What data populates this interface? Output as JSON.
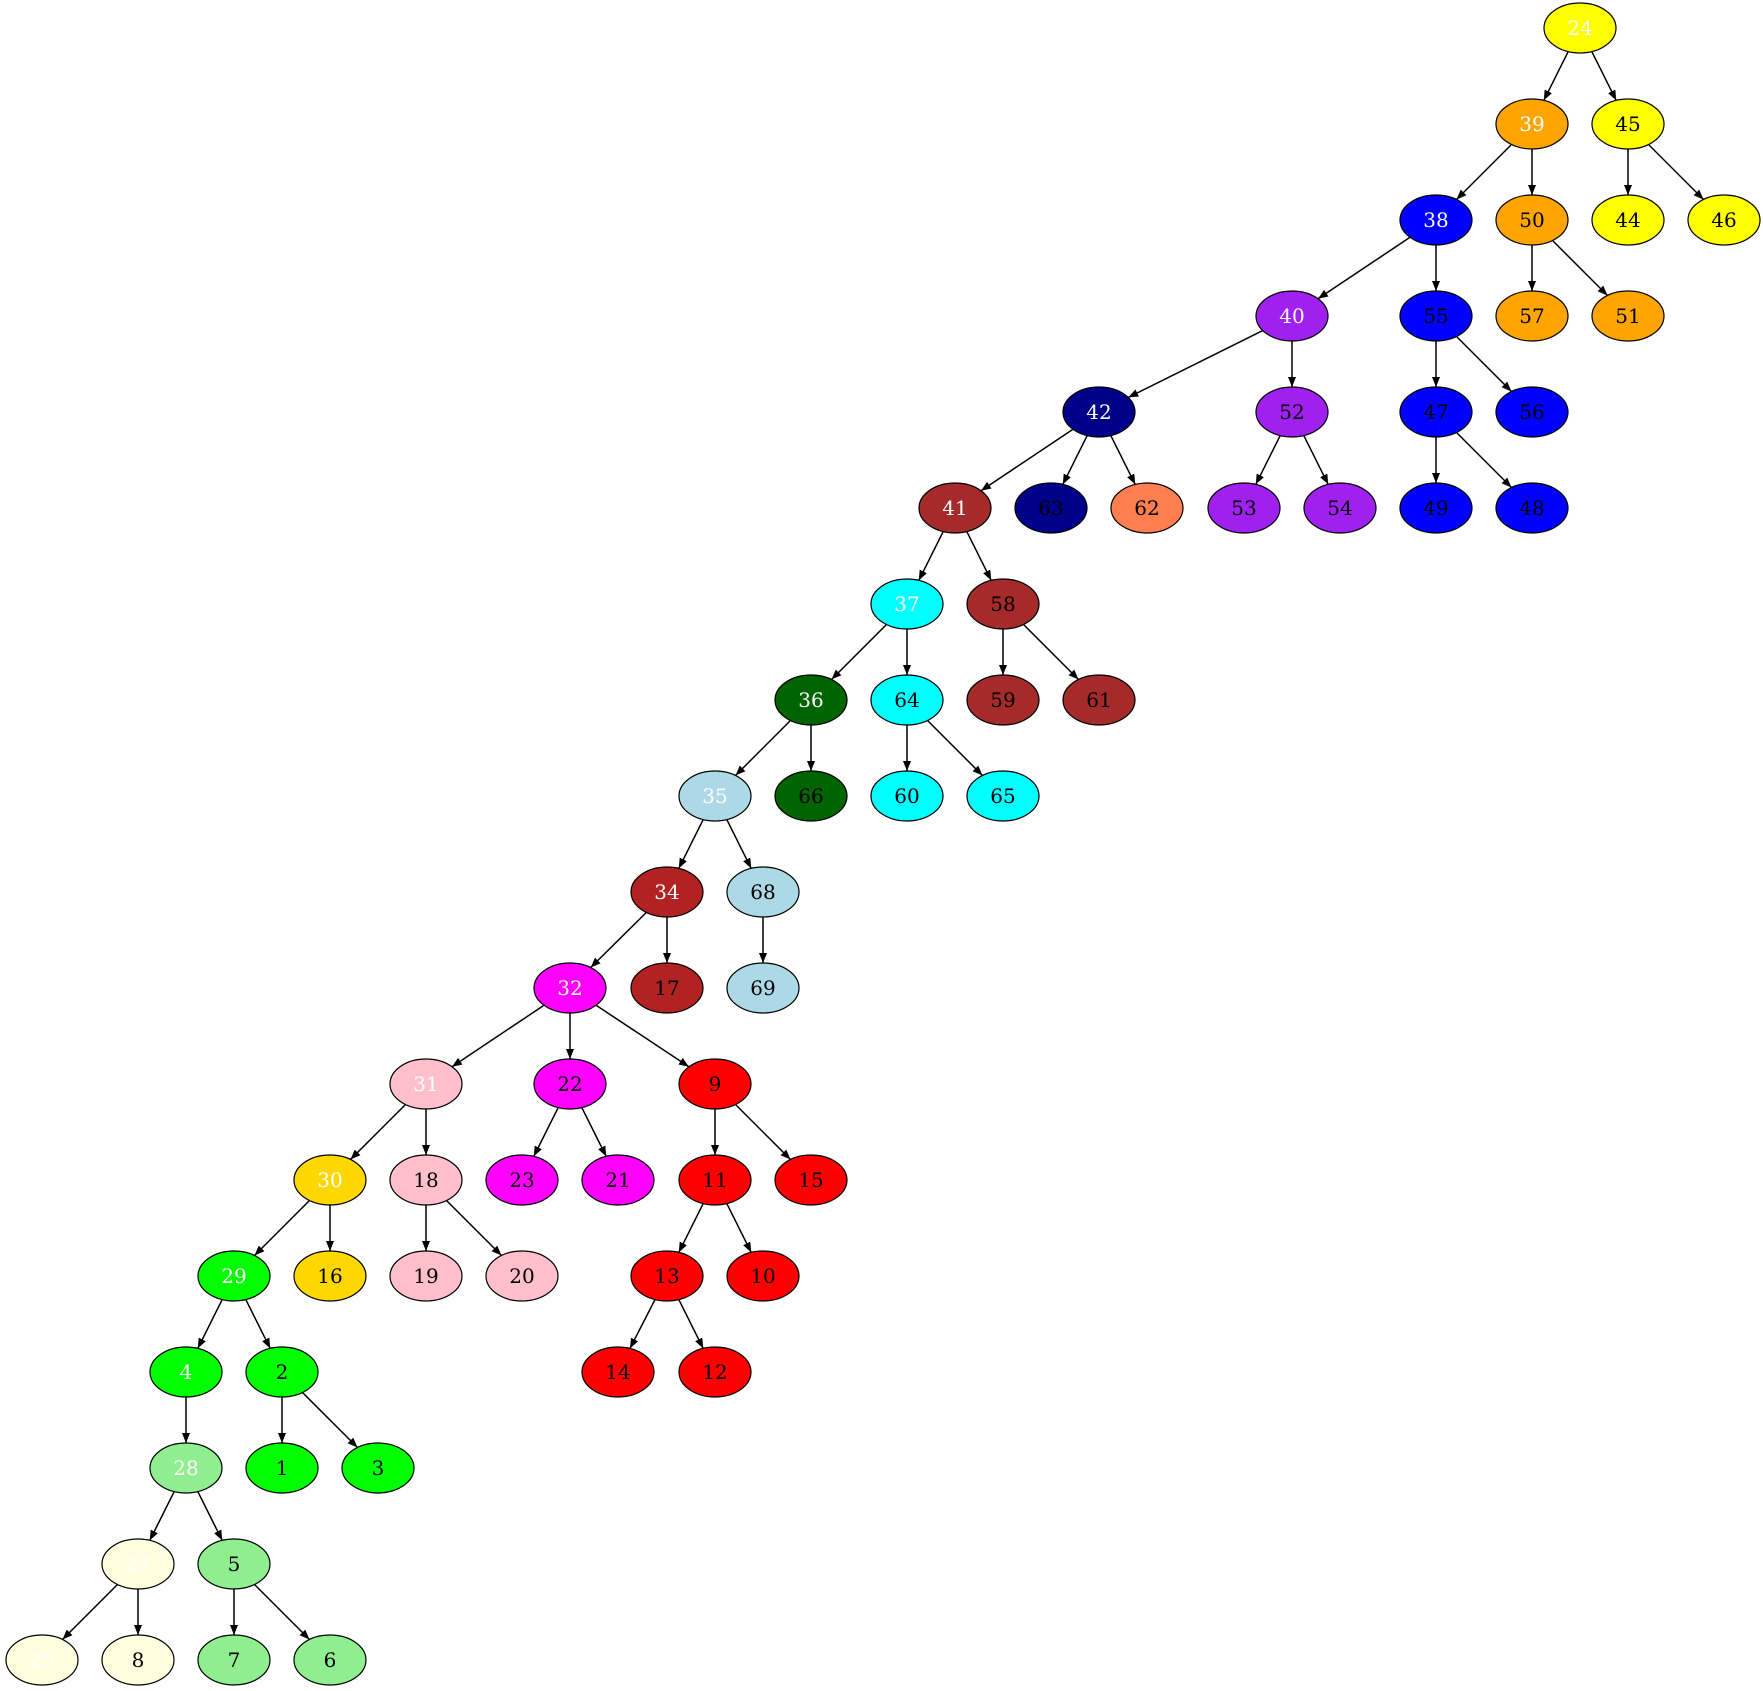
{
  "colors": {
    "yellow": "#ffff00",
    "orange": "#ffa500",
    "blue": "#0000ff",
    "purple": "#a020f0",
    "darkblue": "#00008b",
    "coral": "#ff7f50",
    "brown": "#a52a2a",
    "cyan": "#00ffff",
    "darkgreen": "#006400",
    "lightblue": "#add8e6",
    "firebrick": "#b22222",
    "magenta": "#ff00ff",
    "pink": "#ffc0cb",
    "red": "#ff0000",
    "gold": "#ffd700",
    "green": "#00ff00",
    "lightgreen": "#90ee90",
    "lightyellow": "#ffffe0"
  },
  "nodes": [
    {
      "id": "24",
      "label": "24",
      "color": "yellow",
      "text": "white"
    },
    {
      "id": "39",
      "label": "39",
      "color": "orange",
      "text": "white"
    },
    {
      "id": "45",
      "label": "45",
      "color": "yellow",
      "text": "black"
    },
    {
      "id": "38",
      "label": "38",
      "color": "blue",
      "text": "white"
    },
    {
      "id": "50",
      "label": "50",
      "color": "orange",
      "text": "black"
    },
    {
      "id": "44",
      "label": "44",
      "color": "yellow",
      "text": "black"
    },
    {
      "id": "46",
      "label": "46",
      "color": "yellow",
      "text": "black"
    },
    {
      "id": "40",
      "label": "40",
      "color": "purple",
      "text": "white"
    },
    {
      "id": "55",
      "label": "55",
      "color": "blue",
      "text": "black"
    },
    {
      "id": "57",
      "label": "57",
      "color": "orange",
      "text": "black"
    },
    {
      "id": "51",
      "label": "51",
      "color": "orange",
      "text": "black"
    },
    {
      "id": "42",
      "label": "42",
      "color": "darkblue",
      "text": "white"
    },
    {
      "id": "52",
      "label": "52",
      "color": "purple",
      "text": "black"
    },
    {
      "id": "47",
      "label": "47",
      "color": "blue",
      "text": "black"
    },
    {
      "id": "56",
      "label": "56",
      "color": "blue",
      "text": "black"
    },
    {
      "id": "41",
      "label": "41",
      "color": "brown",
      "text": "white"
    },
    {
      "id": "63",
      "label": "63",
      "color": "darkblue",
      "text": "black"
    },
    {
      "id": "62",
      "label": "62",
      "color": "coral",
      "text": "black"
    },
    {
      "id": "53",
      "label": "53",
      "color": "purple",
      "text": "black"
    },
    {
      "id": "54",
      "label": "54",
      "color": "purple",
      "text": "black"
    },
    {
      "id": "49",
      "label": "49",
      "color": "blue",
      "text": "black"
    },
    {
      "id": "48",
      "label": "48",
      "color": "blue",
      "text": "black"
    },
    {
      "id": "37",
      "label": "37",
      "color": "cyan",
      "text": "white"
    },
    {
      "id": "58",
      "label": "58",
      "color": "brown",
      "text": "black"
    },
    {
      "id": "36",
      "label": "36",
      "color": "darkgreen",
      "text": "white"
    },
    {
      "id": "64",
      "label": "64",
      "color": "cyan",
      "text": "black"
    },
    {
      "id": "59",
      "label": "59",
      "color": "brown",
      "text": "black"
    },
    {
      "id": "61",
      "label": "61",
      "color": "brown",
      "text": "black"
    },
    {
      "id": "35",
      "label": "35",
      "color": "lightblue",
      "text": "white"
    },
    {
      "id": "66",
      "label": "66",
      "color": "darkgreen",
      "text": "black"
    },
    {
      "id": "60",
      "label": "60",
      "color": "cyan",
      "text": "black"
    },
    {
      "id": "65",
      "label": "65",
      "color": "cyan",
      "text": "black"
    },
    {
      "id": "34",
      "label": "34",
      "color": "firebrick",
      "text": "white"
    },
    {
      "id": "68",
      "label": "68",
      "color": "lightblue",
      "text": "black"
    },
    {
      "id": "32",
      "label": "32",
      "color": "magenta",
      "text": "white"
    },
    {
      "id": "17",
      "label": "17",
      "color": "firebrick",
      "text": "black"
    },
    {
      "id": "69",
      "label": "69",
      "color": "lightblue",
      "text": "black"
    },
    {
      "id": "31",
      "label": "31",
      "color": "pink",
      "text": "white"
    },
    {
      "id": "22",
      "label": "22",
      "color": "magenta",
      "text": "black"
    },
    {
      "id": "9",
      "label": "9",
      "color": "red",
      "text": "black"
    },
    {
      "id": "30",
      "label": "30",
      "color": "gold",
      "text": "white"
    },
    {
      "id": "18",
      "label": "18",
      "color": "pink",
      "text": "black"
    },
    {
      "id": "23",
      "label": "23",
      "color": "magenta",
      "text": "black"
    },
    {
      "id": "21",
      "label": "21",
      "color": "magenta",
      "text": "black"
    },
    {
      "id": "11",
      "label": "11",
      "color": "red",
      "text": "black"
    },
    {
      "id": "15",
      "label": "15",
      "color": "red",
      "text": "black"
    },
    {
      "id": "29",
      "label": "29",
      "color": "green",
      "text": "white"
    },
    {
      "id": "16",
      "label": "16",
      "color": "gold",
      "text": "black"
    },
    {
      "id": "19",
      "label": "19",
      "color": "pink",
      "text": "black"
    },
    {
      "id": "20",
      "label": "20",
      "color": "pink",
      "text": "black"
    },
    {
      "id": "13",
      "label": "13",
      "color": "red",
      "text": "black"
    },
    {
      "id": "10",
      "label": "10",
      "color": "red",
      "text": "black"
    },
    {
      "id": "4",
      "label": "4",
      "color": "green",
      "text": "white"
    },
    {
      "id": "2",
      "label": "2",
      "color": "green",
      "text": "black"
    },
    {
      "id": "14",
      "label": "14",
      "color": "red",
      "text": "black"
    },
    {
      "id": "12",
      "label": "12",
      "color": "red",
      "text": "black"
    },
    {
      "id": "28",
      "label": "28",
      "color": "lightgreen",
      "text": "white"
    },
    {
      "id": "1",
      "label": "1",
      "color": "green",
      "text": "black"
    },
    {
      "id": "3",
      "label": "3",
      "color": "green",
      "text": "black"
    },
    {
      "id": "27",
      "label": "27",
      "color": "lightyellow",
      "text": "white"
    },
    {
      "id": "5",
      "label": "5",
      "color": "lightgreen",
      "text": "black"
    },
    {
      "id": "25",
      "label": "25",
      "color": "lightyellow",
      "text": "white"
    },
    {
      "id": "8",
      "label": "8",
      "color": "lightyellow",
      "text": "black"
    },
    {
      "id": "7",
      "label": "7",
      "color": "lightgreen",
      "text": "black"
    },
    {
      "id": "6",
      "label": "6",
      "color": "lightgreen",
      "text": "black"
    }
  ],
  "edges": [
    [
      "24",
      "39"
    ],
    [
      "24",
      "45"
    ],
    [
      "39",
      "38"
    ],
    [
      "39",
      "50"
    ],
    [
      "45",
      "44"
    ],
    [
      "45",
      "46"
    ],
    [
      "38",
      "40"
    ],
    [
      "38",
      "55"
    ],
    [
      "50",
      "57"
    ],
    [
      "50",
      "51"
    ],
    [
      "40",
      "42"
    ],
    [
      "40",
      "52"
    ],
    [
      "55",
      "47"
    ],
    [
      "55",
      "56"
    ],
    [
      "42",
      "41"
    ],
    [
      "42",
      "63"
    ],
    [
      "42",
      "62"
    ],
    [
      "52",
      "53"
    ],
    [
      "52",
      "54"
    ],
    [
      "47",
      "49"
    ],
    [
      "47",
      "48"
    ],
    [
      "41",
      "37"
    ],
    [
      "41",
      "58"
    ],
    [
      "37",
      "36"
    ],
    [
      "37",
      "64"
    ],
    [
      "58",
      "59"
    ],
    [
      "58",
      "61"
    ],
    [
      "36",
      "35"
    ],
    [
      "36",
      "66"
    ],
    [
      "64",
      "60"
    ],
    [
      "64",
      "65"
    ],
    [
      "35",
      "34"
    ],
    [
      "35",
      "68"
    ],
    [
      "34",
      "32"
    ],
    [
      "34",
      "17"
    ],
    [
      "68",
      "69"
    ],
    [
      "32",
      "31"
    ],
    [
      "32",
      "22"
    ],
    [
      "32",
      "9"
    ],
    [
      "31",
      "30"
    ],
    [
      "31",
      "18"
    ],
    [
      "22",
      "23"
    ],
    [
      "22",
      "21"
    ],
    [
      "9",
      "11"
    ],
    [
      "9",
      "15"
    ],
    [
      "30",
      "29"
    ],
    [
      "30",
      "16"
    ],
    [
      "18",
      "19"
    ],
    [
      "18",
      "20"
    ],
    [
      "11",
      "13"
    ],
    [
      "11",
      "10"
    ],
    [
      "29",
      "4"
    ],
    [
      "29",
      "2"
    ],
    [
      "13",
      "14"
    ],
    [
      "13",
      "12"
    ],
    [
      "4",
      "28"
    ],
    [
      "2",
      "1"
    ],
    [
      "2",
      "3"
    ],
    [
      "28",
      "27"
    ],
    [
      "28",
      "5"
    ],
    [
      "27",
      "25"
    ],
    [
      "27",
      "8"
    ],
    [
      "5",
      "7"
    ],
    [
      "5",
      "6"
    ]
  ]
}
